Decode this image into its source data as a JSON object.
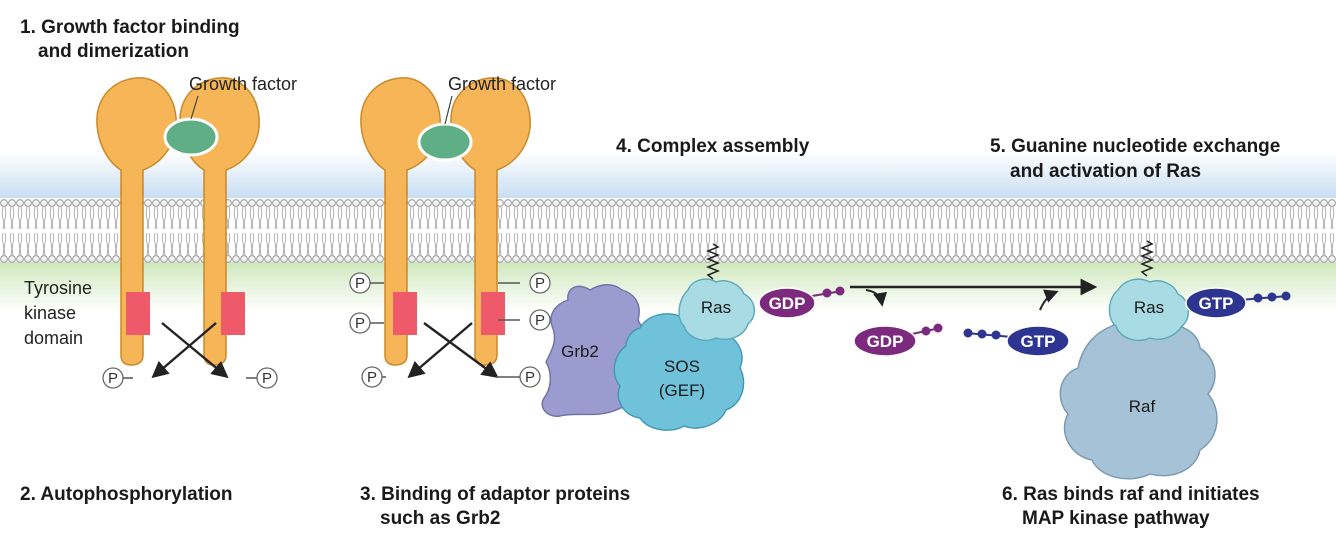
{
  "steps": {
    "s1_line1": "1. Growth factor binding",
    "s1_line2": "and dimerization",
    "s2": "2. Autophosphorylation",
    "s3_line1": "3. Binding of adaptor proteins",
    "s3_line2": "such as Grb2",
    "s4": "4. Complex assembly",
    "s5_line1": "5. Guanine nucleotide exchange",
    "s5_line2": "and activation of Ras",
    "s6_line1": "6. Ras binds raf and initiates",
    "s6_line2": "MAP kinase pathway"
  },
  "labels": {
    "growth_factor_1": "Growth factor",
    "growth_factor_2": "Growth factor",
    "tyr_line1": "Tyrosine",
    "tyr_line2": "kinase",
    "tyr_line3": "domain",
    "grb2": "Grb2",
    "sos_line1": "SOS",
    "sos_line2": "(GEF)",
    "ras": "Ras",
    "raf": "Raf",
    "gdp": "GDP",
    "gtp": "GTP",
    "phosphate": "P"
  },
  "colors": {
    "receptor": "#f6b557",
    "receptor_outline": "#c98a2a",
    "kinase_domain": "#ee5a6a",
    "growth_factor": "#5fae85",
    "grb2": "#9a9ccf",
    "sos": "#6fc2da",
    "ras": "#a9dbe4",
    "raf": "#a6c2d6",
    "gdp": "#7b2a7d",
    "gtp": "#2e3590",
    "membrane_top": "#cfe3f4",
    "membrane_bottom": "#d6ecc4"
  }
}
